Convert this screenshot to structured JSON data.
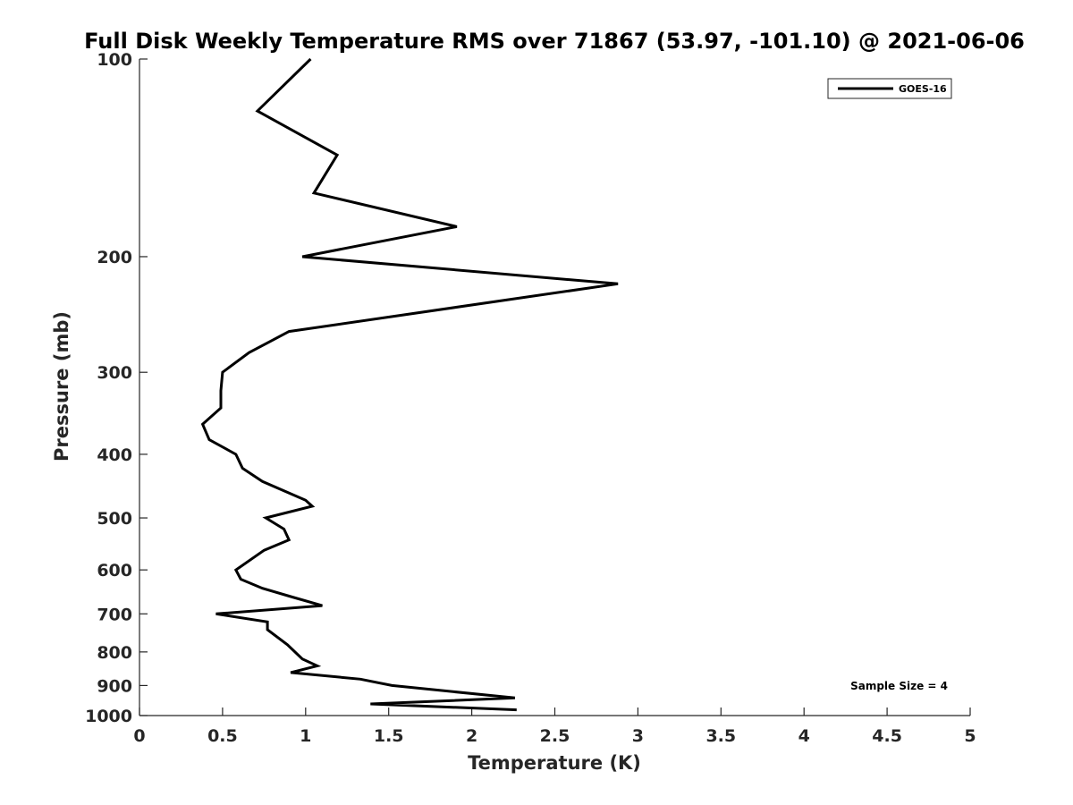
{
  "chart_data": {
    "type": "line",
    "title": "Full Disk Weekly Temperature RMS over 71867 (53.97, -101.10) @ 2021-06-06",
    "xlabel": "Temperature (K)",
    "ylabel": "Pressure (mb)",
    "xlim": [
      0,
      5
    ],
    "ylim": [
      100,
      1000
    ],
    "y_scale": "log",
    "y_reversed": true,
    "grid": false,
    "legend_position": "top-right",
    "x_ticks": [
      0,
      0.5,
      1,
      1.5,
      2,
      2.5,
      3,
      3.5,
      4,
      4.5,
      5
    ],
    "x_tick_labels": [
      "0",
      "0.5",
      "1",
      "1.5",
      "2",
      "2.5",
      "3",
      "3.5",
      "4",
      "4.5",
      "5"
    ],
    "y_ticks": [
      100,
      200,
      300,
      400,
      500,
      600,
      700,
      800,
      900,
      1000
    ],
    "y_tick_labels": [
      "100",
      "200",
      "300",
      "400",
      "500",
      "600",
      "700",
      "800",
      "900",
      "1000"
    ],
    "annotation": "Sample Size = 4",
    "series": [
      {
        "name": "GOES-16",
        "color": "#000000",
        "points": [
          {
            "x": 1.03,
            "p": 100
          },
          {
            "x": 0.71,
            "p": 120
          },
          {
            "x": 1.19,
            "p": 140
          },
          {
            "x": 1.05,
            "p": 160
          },
          {
            "x": 1.91,
            "p": 180
          },
          {
            "x": 0.98,
            "p": 200
          },
          {
            "x": 2.88,
            "p": 220
          },
          {
            "x": 0.9,
            "p": 260
          },
          {
            "x": 0.66,
            "p": 280
          },
          {
            "x": 0.5,
            "p": 300
          },
          {
            "x": 0.49,
            "p": 320
          },
          {
            "x": 0.49,
            "p": 340
          },
          {
            "x": 0.38,
            "p": 360
          },
          {
            "x": 0.42,
            "p": 380
          },
          {
            "x": 0.58,
            "p": 400
          },
          {
            "x": 0.62,
            "p": 420
          },
          {
            "x": 0.74,
            "p": 440
          },
          {
            "x": 1.0,
            "p": 470
          },
          {
            "x": 1.04,
            "p": 480
          },
          {
            "x": 0.76,
            "p": 500
          },
          {
            "x": 0.87,
            "p": 520
          },
          {
            "x": 0.9,
            "p": 540
          },
          {
            "x": 0.75,
            "p": 560
          },
          {
            "x": 0.58,
            "p": 600
          },
          {
            "x": 0.61,
            "p": 620
          },
          {
            "x": 0.74,
            "p": 640
          },
          {
            "x": 0.92,
            "p": 660
          },
          {
            "x": 1.1,
            "p": 680
          },
          {
            "x": 0.46,
            "p": 700
          },
          {
            "x": 0.77,
            "p": 720
          },
          {
            "x": 0.77,
            "p": 740
          },
          {
            "x": 0.89,
            "p": 780
          },
          {
            "x": 0.98,
            "p": 820
          },
          {
            "x": 1.07,
            "p": 840
          },
          {
            "x": 0.91,
            "p": 860
          },
          {
            "x": 1.33,
            "p": 880
          },
          {
            "x": 1.52,
            "p": 900
          },
          {
            "x": 2.26,
            "p": 940
          },
          {
            "x": 1.39,
            "p": 960
          },
          {
            "x": 2.27,
            "p": 980
          }
        ]
      }
    ]
  }
}
